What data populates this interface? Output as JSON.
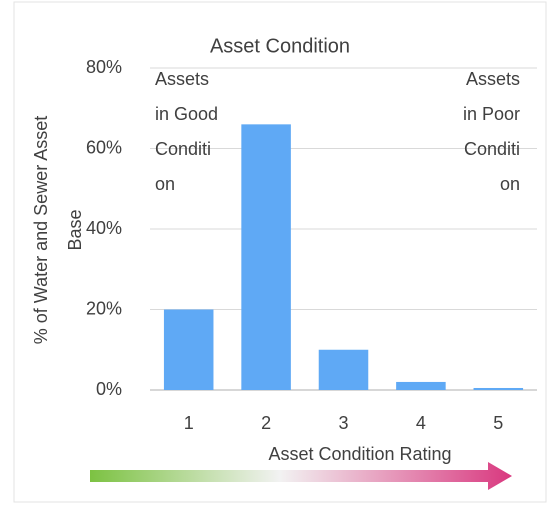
{
  "chart_data": {
    "type": "bar",
    "title": "Asset Condition",
    "categories": [
      "1",
      "2",
      "3",
      "4",
      "5"
    ],
    "values": [
      20,
      66,
      10,
      2,
      0.5
    ],
    "color": "#5fa9f5",
    "ylim": [
      0,
      80
    ],
    "yticks": [
      {
        "value": 0,
        "label": "0%"
      },
      {
        "value": 20,
        "label": "20%"
      },
      {
        "value": 40,
        "label": "40%"
      },
      {
        "value": 60,
        "label": "60%"
      },
      {
        "value": 80,
        "label": "80%"
      }
    ],
    "grid": true,
    "x_label": "Asset Condition Rating",
    "y_label_lines": [
      "% of Water and Sewer Asset",
      "Base"
    ],
    "annotations": [
      {
        "lines": [
          "Assets",
          "in Good",
          "Conditi",
          "on"
        ],
        "align": "left"
      },
      {
        "lines": [
          "Assets",
          "in Poor",
          "Conditi",
          "on"
        ],
        "align": "right"
      }
    ]
  }
}
